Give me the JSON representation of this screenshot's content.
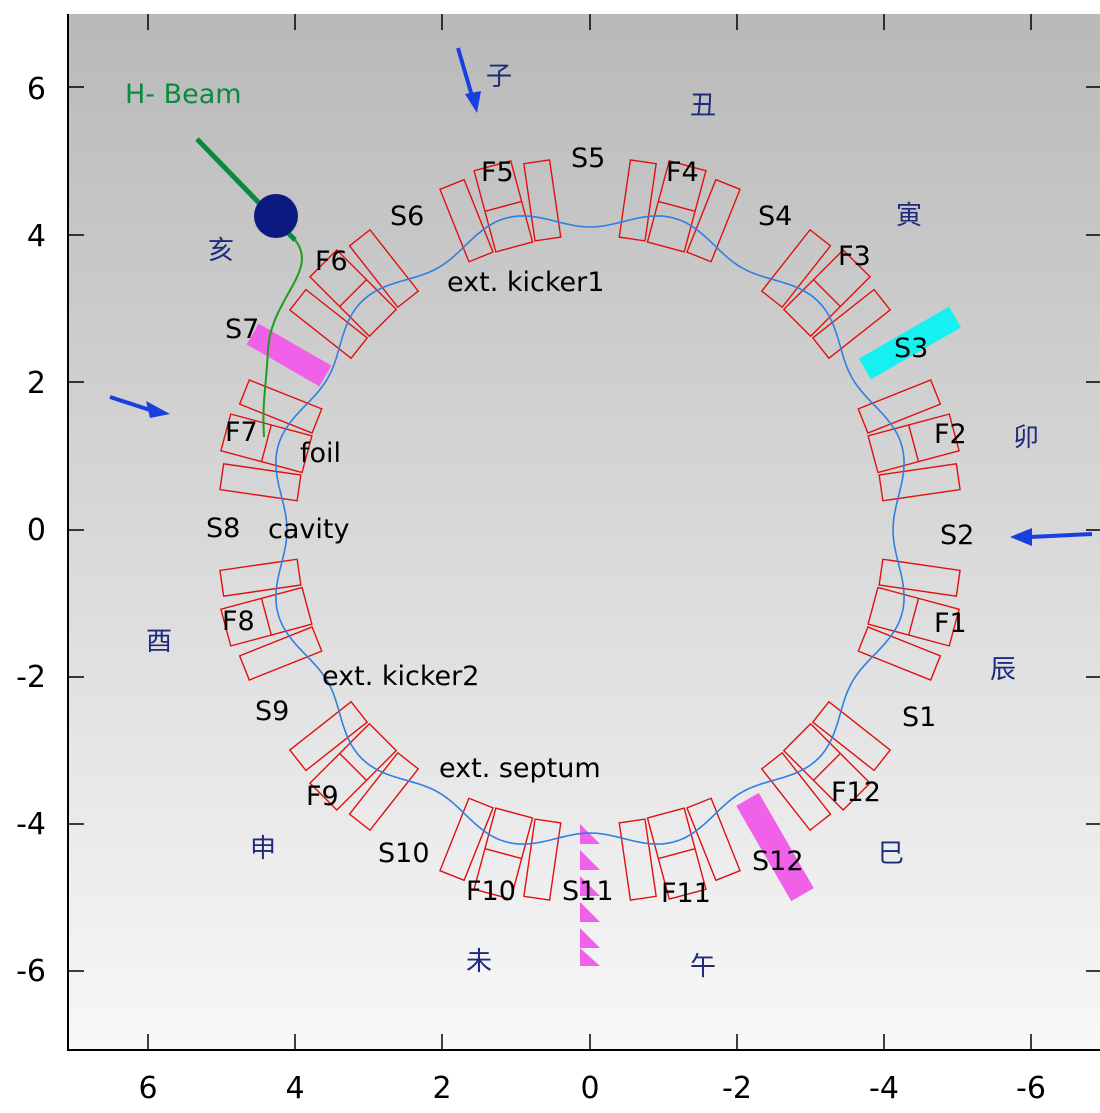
{
  "axes": {
    "x_ticks": [
      "6",
      "4",
      "2",
      "0",
      "-2",
      "-4",
      "-6"
    ],
    "y_ticks": [
      "6",
      "4",
      "2",
      "0",
      "-2",
      "-4",
      "-6"
    ]
  },
  "labels": {
    "beam": "H- Beam",
    "foil": "foil",
    "cavity": "cavity",
    "kicker1": "ext. kicker1",
    "kicker2": "ext. kicker2",
    "septum": "ext. septum"
  },
  "magnets": {
    "F1": "F1",
    "F2": "F2",
    "F3": "F3",
    "F4": "F4",
    "F5": "F5",
    "F6": "F6",
    "F7": "F7",
    "F8": "F8",
    "F9": "F9",
    "F10": "F10",
    "F11": "F11",
    "F12": "F12"
  },
  "sections": {
    "S1": "S1",
    "S2": "S2",
    "S3": "S3",
    "S4": "S4",
    "S5": "S5",
    "S6": "S6",
    "S7": "S7",
    "S8": "S8",
    "S9": "S9",
    "S10": "S10",
    "S11": "S11",
    "S12": "S12"
  },
  "zodiac": {
    "ne": "子",
    "ushi": "丑",
    "tora": "寅",
    "u": "卯",
    "tatsu": "辰",
    "mi": "巳",
    "uma": "午",
    "hitsuji": "未",
    "saru": "申",
    "tori": "酉",
    "i": "亥"
  },
  "colors": {
    "magnet": "#e01010",
    "orbit": "#2f7fe0",
    "beam": "#0a8a3c",
    "arrow": "#1a3fe0",
    "s3_highlight": "#17f0f0",
    "pink_highlight": "#f060e8",
    "zodiac_text": "#1d2b7a",
    "target_dot": "#0a1a80"
  }
}
